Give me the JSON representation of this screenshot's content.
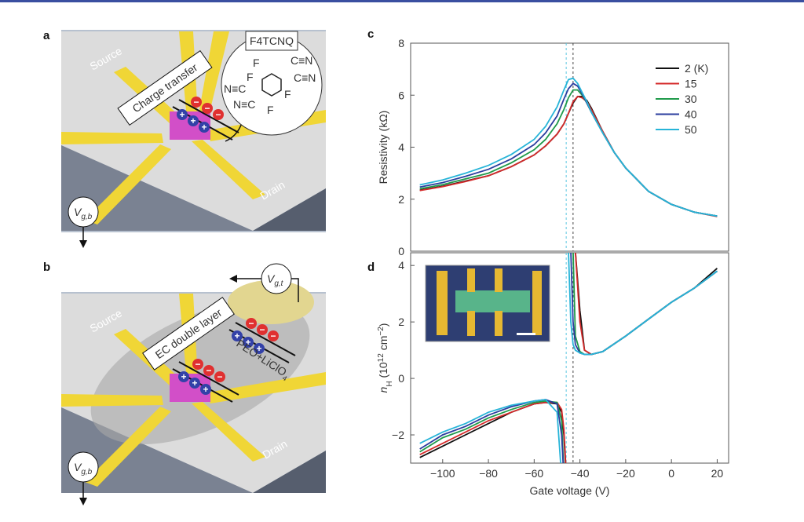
{
  "panel_labels": [
    "a",
    "b",
    "c",
    "d"
  ],
  "panel_a": {
    "source": "Source",
    "drain": "Drain",
    "charge_transfer": "Charge transfer",
    "molecule": {
      "name": "F4TCNQ",
      "f": "F",
      "cn": "C≡N",
      "nc": "N≡C"
    },
    "plus": "+",
    "minus": "−",
    "gate": {
      "v": "V",
      "sub": "g,b"
    }
  },
  "panel_b": {
    "source": "Source",
    "drain": "Drain",
    "layer": "EC double layer",
    "electrolyte": "PEO+LiClO",
    "electrolyte_sub": "4",
    "plus": "+",
    "minus": "−",
    "gate_bottom": {
      "v": "V",
      "sub": "g,b"
    },
    "gate_top": {
      "v": "V",
      "sub": "g,t"
    }
  },
  "chart_data": [
    {
      "type": "line",
      "ylabel": "Resistivity (kΩ)",
      "xlim": [
        -114,
        25
      ],
      "ylim": [
        0,
        8
      ],
      "yticks": [
        0,
        2,
        4,
        6,
        8
      ],
      "legend": "upper right",
      "reference_lines": [
        {
          "x": -46,
          "color": "#5cc8e0"
        },
        {
          "x": -43,
          "color": "#444"
        }
      ],
      "x": [
        -110,
        -100,
        -90,
        -80,
        -70,
        -60,
        -55,
        -50,
        -47,
        -45,
        -43,
        -41,
        -39,
        -37,
        -35,
        -30,
        -25,
        -20,
        -10,
        0,
        10,
        20
      ],
      "series": [
        {
          "name": "2 (K)",
          "color": "#111111",
          "values": [
            2.35,
            2.5,
            2.7,
            2.9,
            3.25,
            3.7,
            4.05,
            4.5,
            4.9,
            5.3,
            5.7,
            5.95,
            5.95,
            5.8,
            5.5,
            4.6,
            3.8,
            3.2,
            2.3,
            1.8,
            1.5,
            1.35
          ]
        },
        {
          "name": "15",
          "color": "#d42a2a",
          "values": [
            2.33,
            2.48,
            2.68,
            2.9,
            3.25,
            3.7,
            4.05,
            4.5,
            4.9,
            5.3,
            5.75,
            5.95,
            5.9,
            5.75,
            5.45,
            4.6,
            3.8,
            3.2,
            2.3,
            1.8,
            1.5,
            1.33
          ]
        },
        {
          "name": "30",
          "color": "#1f9a4a",
          "values": [
            2.4,
            2.56,
            2.78,
            3.0,
            3.4,
            3.9,
            4.3,
            4.9,
            5.45,
            5.9,
            6.2,
            6.2,
            6.0,
            5.7,
            5.35,
            4.55,
            3.8,
            3.2,
            2.3,
            1.8,
            1.5,
            1.35
          ]
        },
        {
          "name": "40",
          "color": "#2b3d9e",
          "values": [
            2.47,
            2.64,
            2.88,
            3.15,
            3.55,
            4.1,
            4.55,
            5.2,
            5.85,
            6.25,
            6.45,
            6.35,
            6.05,
            5.7,
            5.35,
            4.55,
            3.8,
            3.2,
            2.3,
            1.8,
            1.5,
            1.35
          ]
        },
        {
          "name": "50",
          "color": "#27b4d8",
          "values": [
            2.55,
            2.74,
            3.0,
            3.3,
            3.72,
            4.3,
            4.8,
            5.55,
            6.2,
            6.6,
            6.65,
            6.45,
            6.1,
            5.75,
            5.35,
            4.55,
            3.8,
            3.2,
            2.3,
            1.8,
            1.5,
            1.35
          ]
        }
      ]
    },
    {
      "type": "line",
      "ylabel_parts": [
        "n",
        "H",
        " (10",
        "12",
        " cm",
        "−2",
        ")"
      ],
      "xlabel": "Gate voltage (V)",
      "xlim": [
        -114,
        25
      ],
      "ylim": [
        -3,
        4.45
      ],
      "yticks": [
        {
          "value": -2,
          "label": "−2"
        },
        0,
        2,
        4
      ],
      "xticks": [
        {
          "value": -100,
          "label": "−100"
        },
        {
          "value": -80,
          "label": "−80"
        },
        {
          "value": -60,
          "label": "−60"
        },
        {
          "value": -40,
          "label": "−40"
        },
        {
          "value": -20,
          "label": "−20"
        },
        0,
        20
      ],
      "reference_lines": [
        {
          "x": -46,
          "color": "#5cc8e0"
        },
        {
          "x": -43,
          "color": "#444"
        }
      ],
      "x": [
        -110,
        -100,
        -90,
        -80,
        -70,
        -60,
        -55,
        -50,
        -48,
        -47,
        -46,
        -45,
        -44,
        -43,
        -42,
        -40,
        -38,
        -35,
        -30,
        -20,
        -10,
        0,
        10,
        20
      ],
      "series": [
        {
          "name": "2 (K)",
          "color": "#111111",
          "values": [
            -2.8,
            -2.4,
            -2.0,
            -1.6,
            -1.2,
            -0.9,
            -0.85,
            -0.9,
            -1.2,
            -2.0,
            -3.5,
            null,
            null,
            null,
            4.5,
            2.4,
            1.0,
            0.85,
            0.95,
            1.5,
            2.1,
            2.7,
            3.2,
            3.9
          ]
        },
        {
          "name": "15",
          "color": "#d42a2a",
          "values": [
            -2.7,
            -2.3,
            -1.9,
            -1.5,
            -1.2,
            -0.9,
            -0.85,
            -0.85,
            -1.1,
            -1.8,
            -3.3,
            null,
            null,
            null,
            4.5,
            2.0,
            1.0,
            0.85,
            0.95,
            1.5,
            2.1,
            2.7,
            3.2,
            3.8
          ]
        },
        {
          "name": "30",
          "color": "#1f9a4a",
          "values": [
            -2.6,
            -2.1,
            -1.8,
            -1.4,
            -1.1,
            -0.85,
            -0.8,
            -0.85,
            -1.5,
            -3.5,
            null,
            null,
            null,
            4.5,
            1.5,
            0.95,
            0.85,
            0.85,
            0.95,
            1.5,
            2.1,
            2.7,
            3.2,
            3.8
          ]
        },
        {
          "name": "40",
          "color": "#2b3d9e",
          "values": [
            -2.5,
            -2.0,
            -1.7,
            -1.3,
            -1.0,
            -0.8,
            -0.75,
            -0.9,
            -2.0,
            -3.5,
            null,
            null,
            4.5,
            2.0,
            1.2,
            0.9,
            0.85,
            0.85,
            0.95,
            1.5,
            2.1,
            2.7,
            3.2,
            3.8
          ]
        },
        {
          "name": "50",
          "color": "#27b4d8",
          "values": [
            -2.3,
            -1.9,
            -1.6,
            -1.2,
            -0.95,
            -0.8,
            -0.75,
            -1.2,
            -3.5,
            null,
            null,
            4.5,
            2.0,
            1.2,
            1.0,
            0.9,
            0.85,
            0.85,
            0.95,
            1.5,
            2.1,
            2.7,
            3.2,
            3.8
          ]
        }
      ]
    }
  ]
}
